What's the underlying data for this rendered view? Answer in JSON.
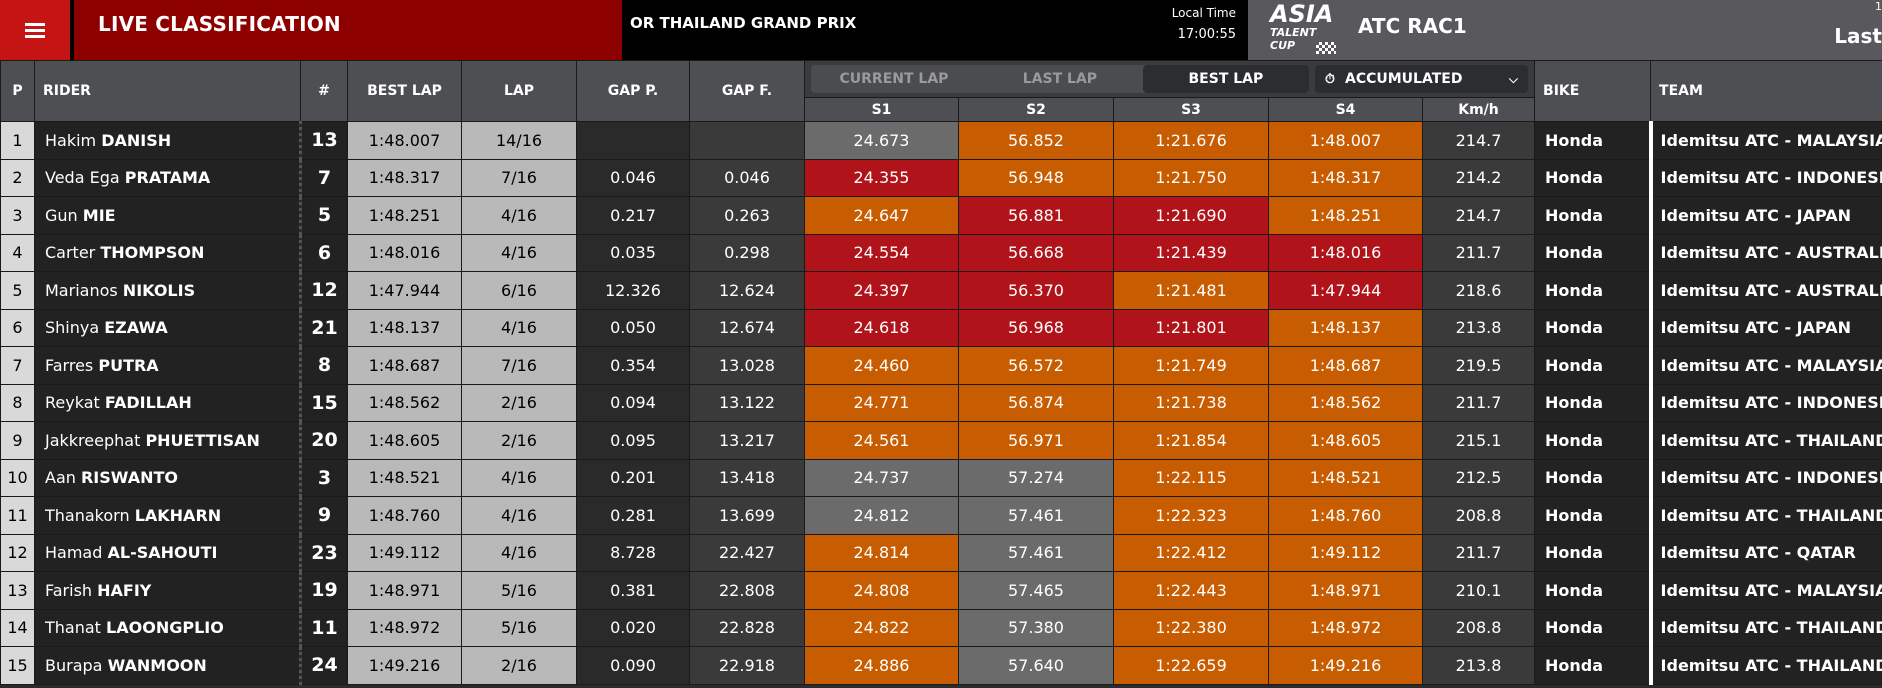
{
  "header": {
    "title": "LIVE CLASSIFICATION",
    "event": "OR THAILAND GRAND PRIX",
    "local_time_label": "Local Time",
    "local_time": "17:00:55",
    "logo_line1": "ASIA",
    "logo_line2": "TALENT",
    "logo_line3": "CUP",
    "session": "ATC RAC1",
    "last_label": "Last",
    "last_sup": "1"
  },
  "columns": {
    "p": "P",
    "rider": "RIDER",
    "num": "#",
    "best": "BEST LAP",
    "lap": "LAP",
    "gapp": "GAP P.",
    "gapf": "GAP F.",
    "s1": "S1",
    "s2": "S2",
    "s3": "S3",
    "s4": "S4",
    "kmh": "Km/h",
    "bike": "BIKE",
    "team": "TEAM"
  },
  "modes": {
    "current": "CURRENT LAP",
    "last": "LAST LAP",
    "best": "BEST LAP",
    "accumulated": "ACCUMULATED",
    "active": "best"
  },
  "colors": {
    "grey": "#6b6b6b",
    "orange": "#c85c00",
    "red": "#b0141a",
    "brand_red": "#c41414"
  },
  "rows": [
    {
      "p": "1",
      "first": "Hakim",
      "last": "DANISH",
      "num": "13",
      "best": "1:48.007",
      "lap": "14/16",
      "gapp": "",
      "gapf": "",
      "s1": "24.673",
      "s1c": "grey",
      "s2": "56.852",
      "s2c": "orange",
      "s3": "1:21.676",
      "s3c": "orange",
      "s4": "1:48.007",
      "s4c": "orange",
      "kmh": "214.7",
      "bike": "Honda",
      "team": "Idemitsu ATC - MALAYSIA"
    },
    {
      "p": "2",
      "first": "Veda Ega",
      "last": "PRATAMA",
      "num": "7",
      "best": "1:48.317",
      "lap": "7/16",
      "gapp": "0.046",
      "gapf": "0.046",
      "s1": "24.355",
      "s1c": "red",
      "s2": "56.948",
      "s2c": "orange",
      "s3": "1:21.750",
      "s3c": "orange",
      "s4": "1:48.317",
      "s4c": "orange",
      "kmh": "214.2",
      "bike": "Honda",
      "team": "Idemitsu ATC - INDONESIA"
    },
    {
      "p": "3",
      "first": "Gun",
      "last": "MIE",
      "num": "5",
      "best": "1:48.251",
      "lap": "4/16",
      "gapp": "0.217",
      "gapf": "0.263",
      "s1": "24.647",
      "s1c": "orange",
      "s2": "56.881",
      "s2c": "red",
      "s3": "1:21.690",
      "s3c": "red",
      "s4": "1:48.251",
      "s4c": "orange",
      "kmh": "214.7",
      "bike": "Honda",
      "team": "Idemitsu ATC - JAPAN"
    },
    {
      "p": "4",
      "first": "Carter",
      "last": "THOMPSON",
      "num": "6",
      "best": "1:48.016",
      "lap": "4/16",
      "gapp": "0.035",
      "gapf": "0.298",
      "s1": "24.554",
      "s1c": "red",
      "s2": "56.668",
      "s2c": "red",
      "s3": "1:21.439",
      "s3c": "red",
      "s4": "1:48.016",
      "s4c": "red",
      "kmh": "211.7",
      "bike": "Honda",
      "team": "Idemitsu ATC - AUSTRALIA"
    },
    {
      "p": "5",
      "first": "Marianos",
      "last": "NIKOLIS",
      "num": "12",
      "best": "1:47.944",
      "lap": "6/16",
      "gapp": "12.326",
      "gapf": "12.624",
      "s1": "24.397",
      "s1c": "red",
      "s2": "56.370",
      "s2c": "red",
      "s3": "1:21.481",
      "s3c": "orange",
      "s4": "1:47.944",
      "s4c": "red",
      "kmh": "218.6",
      "bike": "Honda",
      "team": "Idemitsu ATC - AUSTRALIA"
    },
    {
      "p": "6",
      "first": "Shinya",
      "last": "EZAWA",
      "num": "21",
      "best": "1:48.137",
      "lap": "4/16",
      "gapp": "0.050",
      "gapf": "12.674",
      "s1": "24.618",
      "s1c": "red",
      "s2": "56.968",
      "s2c": "red",
      "s3": "1:21.801",
      "s3c": "red",
      "s4": "1:48.137",
      "s4c": "orange",
      "kmh": "213.8",
      "bike": "Honda",
      "team": "Idemitsu ATC - JAPAN"
    },
    {
      "p": "7",
      "first": "Farres",
      "last": "PUTRA",
      "num": "8",
      "best": "1:48.687",
      "lap": "7/16",
      "gapp": "0.354",
      "gapf": "13.028",
      "s1": "24.460",
      "s1c": "orange",
      "s2": "56.572",
      "s2c": "orange",
      "s3": "1:21.749",
      "s3c": "orange",
      "s4": "1:48.687",
      "s4c": "orange",
      "kmh": "219.5",
      "bike": "Honda",
      "team": "Idemitsu ATC - MALAYSIA"
    },
    {
      "p": "8",
      "first": "Reykat",
      "last": "FADILLAH",
      "num": "15",
      "best": "1:48.562",
      "lap": "2/16",
      "gapp": "0.094",
      "gapf": "13.122",
      "s1": "24.771",
      "s1c": "orange",
      "s2": "56.874",
      "s2c": "orange",
      "s3": "1:21.738",
      "s3c": "orange",
      "s4": "1:48.562",
      "s4c": "orange",
      "kmh": "211.7",
      "bike": "Honda",
      "team": "Idemitsu ATC - INDONESIA"
    },
    {
      "p": "9",
      "first": "Jakkreephat",
      "last": "PHUETTISAN",
      "num": "20",
      "best": "1:48.605",
      "lap": "2/16",
      "gapp": "0.095",
      "gapf": "13.217",
      "s1": "24.561",
      "s1c": "orange",
      "s2": "56.971",
      "s2c": "orange",
      "s3": "1:21.854",
      "s3c": "orange",
      "s4": "1:48.605",
      "s4c": "orange",
      "kmh": "215.1",
      "bike": "Honda",
      "team": "Idemitsu ATC - THAILAND"
    },
    {
      "p": "10",
      "first": "Aan",
      "last": "RISWANTO",
      "num": "3",
      "best": "1:48.521",
      "lap": "4/16",
      "gapp": "0.201",
      "gapf": "13.418",
      "s1": "24.737",
      "s1c": "grey",
      "s2": "57.274",
      "s2c": "grey",
      "s3": "1:22.115",
      "s3c": "orange",
      "s4": "1:48.521",
      "s4c": "orange",
      "kmh": "212.5",
      "bike": "Honda",
      "team": "Idemitsu ATC - INDONESIA"
    },
    {
      "p": "11",
      "first": "Thanakorn",
      "last": "LAKHARN",
      "num": "9",
      "best": "1:48.760",
      "lap": "4/16",
      "gapp": "0.281",
      "gapf": "13.699",
      "s1": "24.812",
      "s1c": "grey",
      "s2": "57.461",
      "s2c": "grey",
      "s3": "1:22.323",
      "s3c": "orange",
      "s4": "1:48.760",
      "s4c": "orange",
      "kmh": "208.8",
      "bike": "Honda",
      "team": "Idemitsu ATC - THAILAND"
    },
    {
      "p": "12",
      "first": "Hamad",
      "last": "AL-SAHOUTI",
      "num": "23",
      "best": "1:49.112",
      "lap": "4/16",
      "gapp": "8.728",
      "gapf": "22.427",
      "s1": "24.814",
      "s1c": "orange",
      "s2": "57.461",
      "s2c": "grey",
      "s3": "1:22.412",
      "s3c": "orange",
      "s4": "1:49.112",
      "s4c": "orange",
      "kmh": "211.7",
      "bike": "Honda",
      "team": "Idemitsu ATC - QATAR"
    },
    {
      "p": "13",
      "first": "Farish",
      "last": "HAFIY",
      "num": "19",
      "best": "1:48.971",
      "lap": "5/16",
      "gapp": "0.381",
      "gapf": "22.808",
      "s1": "24.808",
      "s1c": "orange",
      "s2": "57.465",
      "s2c": "grey",
      "s3": "1:22.443",
      "s3c": "orange",
      "s4": "1:48.971",
      "s4c": "orange",
      "kmh": "210.1",
      "bike": "Honda",
      "team": "Idemitsu ATC - MALAYSIA"
    },
    {
      "p": "14",
      "first": "Thanat",
      "last": "LAOONGPLIO",
      "num": "11",
      "best": "1:48.972",
      "lap": "5/16",
      "gapp": "0.020",
      "gapf": "22.828",
      "s1": "24.822",
      "s1c": "orange",
      "s2": "57.380",
      "s2c": "grey",
      "s3": "1:22.380",
      "s3c": "orange",
      "s4": "1:48.972",
      "s4c": "orange",
      "kmh": "208.8",
      "bike": "Honda",
      "team": "Idemitsu ATC - THAILAND"
    },
    {
      "p": "15",
      "first": "Burapa",
      "last": "WANMOON",
      "num": "24",
      "best": "1:49.216",
      "lap": "2/16",
      "gapp": "0.090",
      "gapf": "22.918",
      "s1": "24.886",
      "s1c": "orange",
      "s2": "57.640",
      "s2c": "grey",
      "s3": "1:22.659",
      "s3c": "orange",
      "s4": "1:49.216",
      "s4c": "orange",
      "kmh": "213.8",
      "bike": "Honda",
      "team": "Idemitsu ATC - THAILAND"
    }
  ]
}
